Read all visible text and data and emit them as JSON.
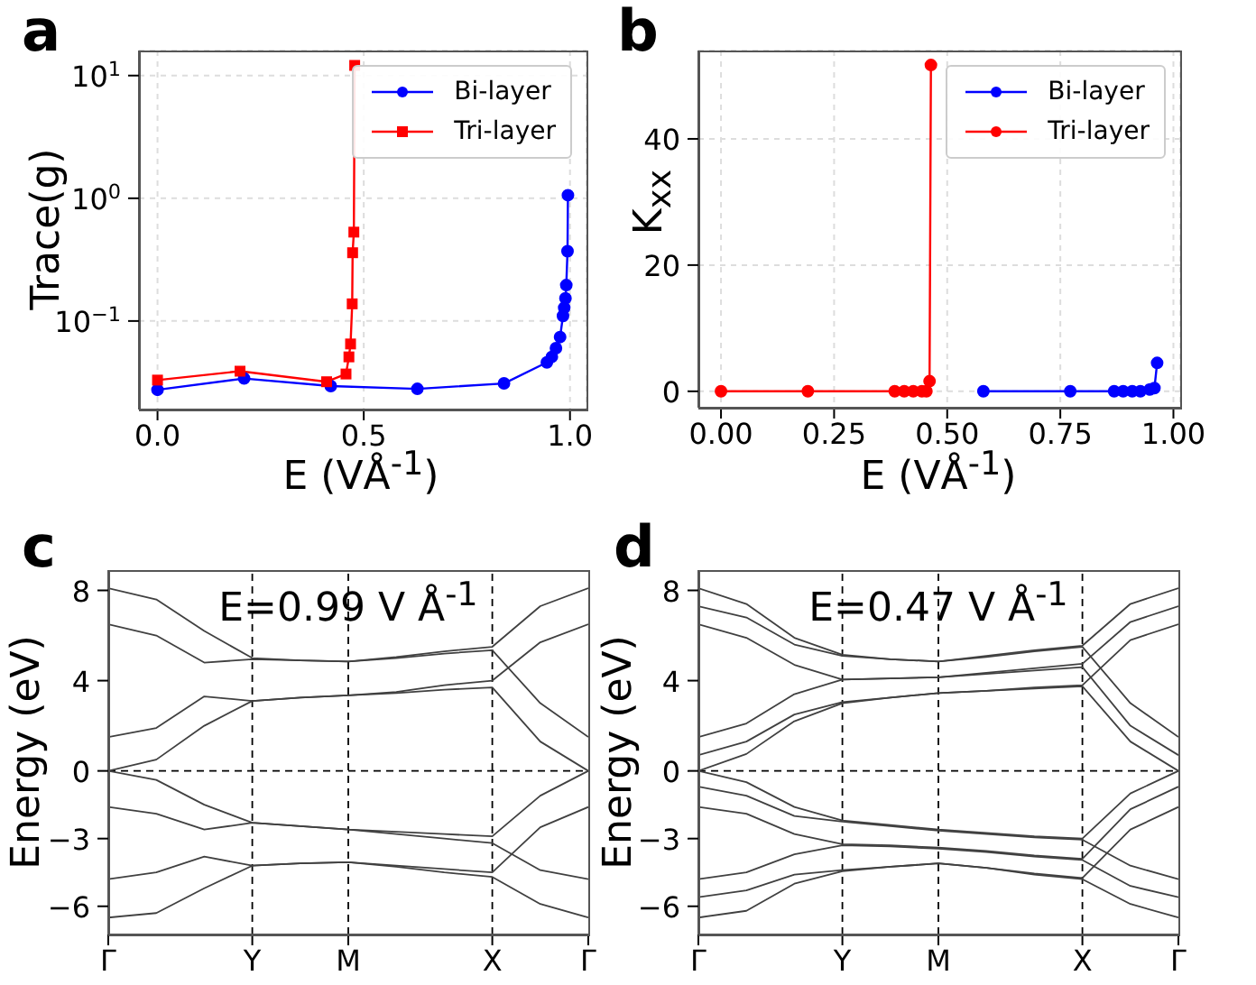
{
  "chart_data": [
    {
      "type": "line",
      "title": "a",
      "xlabel": "E (VÅ$^{-1}$)",
      "ylabel": "Trace(g)",
      "log": "y",
      "grid": true,
      "legend": "top right",
      "xlim": [
        -0.045,
        1.04
      ],
      "xticks": [
        {
          "value": 0,
          "label": "0.0"
        },
        {
          "value": 0.5,
          "label": "0.5"
        },
        {
          "value": 1,
          "label": "1.0"
        }
      ],
      "ylim": [
        0.019,
        16
      ],
      "yticks": [
        {
          "value": 0.1,
          "label": "10$^{−1}$"
        },
        {
          "value": 1,
          "label": "10$^{0}$"
        },
        {
          "value": 10,
          "label": "10$^{1}$"
        }
      ],
      "series": [
        {
          "name": "Bi-layer",
          "color": "#0000ff",
          "marker": "circle",
          "x": [
            0,
            0.21,
            0.42,
            0.63,
            0.84,
            0.944,
            0.956,
            0.966,
            0.976,
            0.983,
            0.986,
            0.989,
            0.991,
            0.994,
            0.995
          ],
          "values": [
            0.0275,
            0.034,
            0.0295,
            0.028,
            0.031,
            0.046,
            0.051,
            0.06,
            0.074,
            0.11,
            0.128,
            0.153,
            0.196,
            0.37,
            1.06
          ]
        },
        {
          "name": "Tri-layer",
          "color": "#ff0000",
          "marker": "square",
          "x": [
            0,
            0.2,
            0.41,
            0.457,
            0.464,
            0.468,
            0.472,
            0.473,
            0.476,
            0.478
          ],
          "values": [
            0.033,
            0.039,
            0.032,
            0.037,
            0.051,
            0.065,
            0.138,
            0.36,
            0.53,
            12.1
          ]
        }
      ]
    },
    {
      "type": "line",
      "title": "b",
      "xlabel": "E (VÅ$^{-1}$)",
      "ylabel": "K$_{xx}$",
      "grid": true,
      "legend": "top right",
      "marker": "circle",
      "xlim": [
        -0.05,
        1.015
      ],
      "xticks": [
        {
          "value": 0,
          "label": "0.00"
        },
        {
          "value": 0.25,
          "label": "0.25"
        },
        {
          "value": 0.5,
          "label": "0.50"
        },
        {
          "value": 0.75,
          "label": "0.75"
        },
        {
          "value": 1,
          "label": "1.00"
        }
      ],
      "ylim": [
        -2.6,
        54
      ],
      "yticks": [
        0,
        20,
        40
      ],
      "series": [
        {
          "name": "Bi-layer",
          "color": "#0000ff",
          "x": [
            0.58,
            0.772,
            0.869,
            0.889,
            0.909,
            0.927,
            0.948,
            0.958,
            0.964
          ],
          "values": [
            0,
            0,
            0,
            0,
            0,
            0,
            0.3,
            0.5,
            4.5
          ]
        },
        {
          "name": "Tri-layer",
          "color": "#ff0000",
          "x": [
            0,
            0.192,
            0.384,
            0.405,
            0.425,
            0.444,
            0.454,
            0.461,
            0.464
          ],
          "values": [
            0,
            0,
            0,
            0,
            0,
            0,
            0,
            1.6,
            51.7
          ]
        }
      ]
    },
    {
      "type": "line",
      "title": "c",
      "ylabel": "Energy (eV)",
      "marker": "none",
      "annotations": [
        "E=0.99 V Å$^{-1}$"
      ],
      "categories": [
        "Γ",
        null,
        null,
        "Y",
        null,
        "M",
        null,
        null,
        "X",
        null,
        "Γ"
      ],
      "ylim": [
        -7.25,
        8.9
      ],
      "yticks": [
        8,
        4,
        0,
        {
          "value": -3,
          "label": "−3"
        },
        {
          "value": -6,
          "label": "−6"
        }
      ],
      "ref_lines": [
        {
          "axis": "x",
          "value": "Y",
          "color": "#000000",
          "line_style": "dashed"
        },
        {
          "axis": "x",
          "value": "M",
          "color": "#000000",
          "line_style": "dashed"
        },
        {
          "axis": "x",
          "value": "X",
          "color": "#000000",
          "line_style": "dashed"
        },
        {
          "axis": "y",
          "value": 0,
          "color": "#000000",
          "line_style": "dashed"
        }
      ],
      "series": [
        {
          "color": "#404040",
          "values": [
            8.1,
            7.6,
            6.2,
            5.0,
            4.9,
            4.85,
            5.05,
            5.3,
            5.5,
            7.3,
            8.1
          ]
        },
        {
          "color": "#404040",
          "values": [
            6.5,
            6.0,
            4.8,
            4.95,
            4.9,
            4.85,
            5.0,
            5.2,
            5.35,
            3.0,
            1.5
          ]
        },
        {
          "color": "#404040",
          "values": [
            1.5,
            1.9,
            3.3,
            3.1,
            3.25,
            3.35,
            3.5,
            3.8,
            4.0,
            5.7,
            6.5
          ]
        },
        {
          "color": "#404040",
          "values": [
            0,
            0.5,
            2.0,
            3.1,
            3.25,
            3.35,
            3.45,
            3.6,
            3.7,
            1.3,
            0
          ]
        },
        {
          "color": "#404040",
          "values": [
            0,
            -0.4,
            -1.5,
            -2.3,
            -2.45,
            -2.6,
            -2.7,
            -2.8,
            -2.9,
            -1.1,
            0
          ]
        },
        {
          "color": "#404040",
          "values": [
            -1.6,
            -1.9,
            -2.6,
            -2.3,
            -2.45,
            -2.6,
            -2.8,
            -3.0,
            -3.2,
            -4.4,
            -4.8
          ]
        },
        {
          "color": "#404040",
          "values": [
            -4.8,
            -4.5,
            -3.8,
            -4.2,
            -4.1,
            -4.05,
            -4.2,
            -4.35,
            -4.5,
            -2.5,
            -1.6
          ]
        },
        {
          "color": "#404040",
          "values": [
            -6.5,
            -6.3,
            -5.2,
            -4.2,
            -4.1,
            -4.05,
            -4.25,
            -4.5,
            -4.7,
            -5.9,
            -6.5
          ]
        }
      ]
    },
    {
      "type": "line",
      "title": "d",
      "ylabel": "Energy (eV)",
      "marker": "none",
      "annotations": [
        "E=0.47 V Å$^{-1}$"
      ],
      "categories": [
        "Γ",
        null,
        null,
        "Y",
        null,
        "M",
        null,
        null,
        "X",
        null,
        "Γ"
      ],
      "ylim": [
        -7.25,
        8.9
      ],
      "yticks": [
        8,
        4,
        0,
        {
          "value": -3,
          "label": "−3"
        },
        {
          "value": -6,
          "label": "−6"
        }
      ],
      "ref_lines": [
        {
          "axis": "x",
          "value": "Y",
          "color": "#000000",
          "line_style": "dashed"
        },
        {
          "axis": "x",
          "value": "M",
          "color": "#000000",
          "line_style": "dashed"
        },
        {
          "axis": "x",
          "value": "X",
          "color": "#000000",
          "line_style": "dashed"
        },
        {
          "axis": "y",
          "value": 0,
          "color": "#000000",
          "line_style": "dashed"
        }
      ],
      "series": [
        {
          "color": "#404040",
          "values": [
            8.1,
            7.4,
            5.9,
            5.15,
            4.95,
            4.85,
            5.1,
            5.35,
            5.55,
            7.4,
            8.1
          ]
        },
        {
          "color": "#404040",
          "values": [
            7.3,
            6.8,
            5.6,
            5.1,
            4.95,
            4.85,
            5.05,
            5.3,
            5.5,
            3.0,
            1.5
          ]
        },
        {
          "color": "#404040",
          "values": [
            6.5,
            5.9,
            4.7,
            4.05,
            4.1,
            4.15,
            4.35,
            4.55,
            4.75,
            6.6,
            7.3
          ]
        },
        {
          "color": "#404040",
          "values": [
            1.5,
            2.1,
            3.4,
            4.05,
            4.1,
            4.15,
            4.3,
            4.45,
            4.6,
            2.0,
            0.7
          ]
        },
        {
          "color": "#404040",
          "values": [
            0.7,
            1.3,
            2.5,
            3.05,
            3.25,
            3.45,
            3.55,
            3.7,
            3.8,
            5.8,
            6.5
          ]
        },
        {
          "color": "#404040",
          "values": [
            0,
            0.75,
            2.2,
            3.0,
            3.25,
            3.45,
            3.55,
            3.65,
            3.75,
            1.3,
            0
          ]
        },
        {
          "color": "#404040",
          "values": [
            0,
            -0.5,
            -1.6,
            -2.2,
            -2.4,
            -2.6,
            -2.75,
            -2.9,
            -3.0,
            -1.0,
            0
          ]
        },
        {
          "color": "#404040",
          "values": [
            -0.7,
            -1.1,
            -2.0,
            -2.25,
            -2.45,
            -2.65,
            -2.8,
            -2.95,
            -3.05,
            -4.2,
            -4.8
          ]
        },
        {
          "color": "#404040",
          "values": [
            -1.6,
            -1.9,
            -2.8,
            -3.25,
            -3.3,
            -3.4,
            -3.55,
            -3.75,
            -3.9,
            -1.7,
            -0.7
          ]
        },
        {
          "color": "#404040",
          "values": [
            -4.8,
            -4.5,
            -3.7,
            -3.3,
            -3.35,
            -3.45,
            -3.6,
            -3.8,
            -3.95,
            -5.1,
            -5.6
          ]
        },
        {
          "color": "#404040",
          "values": [
            -5.6,
            -5.3,
            -4.6,
            -4.4,
            -4.25,
            -4.1,
            -4.3,
            -4.55,
            -4.75,
            -2.6,
            -1.6
          ]
        },
        {
          "color": "#404040",
          "values": [
            -6.5,
            -6.2,
            -5.0,
            -4.45,
            -4.25,
            -4.1,
            -4.3,
            -4.6,
            -4.8,
            -5.9,
            -6.5
          ]
        }
      ]
    }
  ]
}
